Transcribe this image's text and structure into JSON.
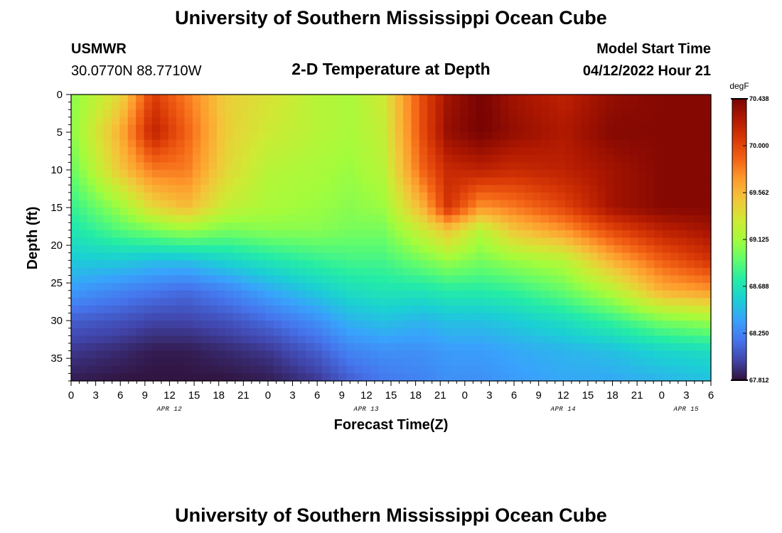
{
  "header": {
    "title": "University of Southern Mississippi Ocean Cube",
    "station": "USMWR",
    "coords": "30.0770N  88.7710W",
    "subtitle": "2-D Temperature at Depth",
    "start_label": "Model Start Time",
    "start_value": "04/12/2022 Hour 21"
  },
  "footer": {
    "title": "University of Southern Mississippi Ocean Cube"
  },
  "chart_data": {
    "type": "heatmap",
    "xlabel": "Forecast Time(Z)",
    "ylabel": "Depth (ft)",
    "x_ticks": [
      "0",
      "3",
      "6",
      "9",
      "12",
      "15",
      "18",
      "21",
      "0",
      "3",
      "6",
      "9",
      "12",
      "15",
      "18",
      "21",
      "0",
      "3",
      "6",
      "9",
      "12",
      "15",
      "18",
      "21",
      "0",
      "3",
      "6"
    ],
    "x_dates": [
      "APR 12",
      "APR 13",
      "APR 14",
      "APR 15"
    ],
    "y_ticks": [
      "0",
      "5",
      "10",
      "15",
      "20",
      "25",
      "30",
      "35"
    ],
    "ylim": [
      0,
      38
    ],
    "forecast_hours": [
      0,
      78
    ],
    "colorbar": {
      "unit": "degF",
      "min": 67.812,
      "max": 70.438,
      "ticks": [
        "70.438",
        "70.000",
        "69.562",
        "69.125",
        "68.688",
        "68.250",
        "67.812"
      ]
    },
    "colors": [
      "#30123b",
      "#4145ab",
      "#4675ed",
      "#39a2fc",
      "#1bcfd4",
      "#24eca6",
      "#61fc6c",
      "#a4fc3b",
      "#d1e834",
      "#f3c63a",
      "#fe9b2d",
      "#f36315",
      "#d93806",
      "#b11901",
      "#7a0402"
    ],
    "depths_ft": [
      0,
      5,
      10,
      15,
      18,
      22,
      26,
      30,
      34,
      38
    ],
    "times_hr": [
      0,
      6,
      10,
      14,
      19,
      24,
      30,
      34,
      38,
      43,
      46,
      50,
      54,
      60,
      66,
      72,
      78
    ],
    "values": [
      [
        69.05,
        69.4,
        70.05,
        69.8,
        69.45,
        69.35,
        69.2,
        69.15,
        69.3,
        70.0,
        70.3,
        70.45,
        70.3,
        70.2,
        70.35,
        70.4,
        70.4
      ],
      [
        69.05,
        69.6,
        70.2,
        69.9,
        69.45,
        69.3,
        69.2,
        69.15,
        69.25,
        70.0,
        70.35,
        70.45,
        70.35,
        70.25,
        70.4,
        70.4,
        70.4
      ],
      [
        68.95,
        69.5,
        69.8,
        69.8,
        69.4,
        69.2,
        69.15,
        69.1,
        69.2,
        69.9,
        70.15,
        70.2,
        70.15,
        70.2,
        70.3,
        70.4,
        70.4
      ],
      [
        68.8,
        69.1,
        69.4,
        69.55,
        69.25,
        69.15,
        69.1,
        69.05,
        69.1,
        69.6,
        70.1,
        69.7,
        69.8,
        70.0,
        70.3,
        70.4,
        70.4
      ],
      [
        68.7,
        68.9,
        69.0,
        69.1,
        69.0,
        69.05,
        69.05,
        69.0,
        69.0,
        69.3,
        69.5,
        69.2,
        69.5,
        69.7,
        70.0,
        70.2,
        70.3
      ],
      [
        68.55,
        68.55,
        68.5,
        68.5,
        68.6,
        68.7,
        68.8,
        68.85,
        68.85,
        69.0,
        69.1,
        69.0,
        69.1,
        69.2,
        69.6,
        69.9,
        70.1
      ],
      [
        68.35,
        68.25,
        68.2,
        68.15,
        68.25,
        68.4,
        68.55,
        68.65,
        68.7,
        68.7,
        68.75,
        68.75,
        68.8,
        68.95,
        69.2,
        69.6,
        69.7
      ],
      [
        68.1,
        68.05,
        68.0,
        68.0,
        68.05,
        68.15,
        68.3,
        68.45,
        68.5,
        68.45,
        68.5,
        68.5,
        68.55,
        68.65,
        68.8,
        69.0,
        69.1
      ],
      [
        67.95,
        67.9,
        67.85,
        67.85,
        67.9,
        67.95,
        68.1,
        68.25,
        68.3,
        68.3,
        68.35,
        68.35,
        68.4,
        68.45,
        68.5,
        68.6,
        68.65
      ],
      [
        67.85,
        67.82,
        67.82,
        67.82,
        67.82,
        67.85,
        67.95,
        68.1,
        68.2,
        68.25,
        68.3,
        68.3,
        68.35,
        68.4,
        68.4,
        68.45,
        68.5
      ]
    ]
  }
}
